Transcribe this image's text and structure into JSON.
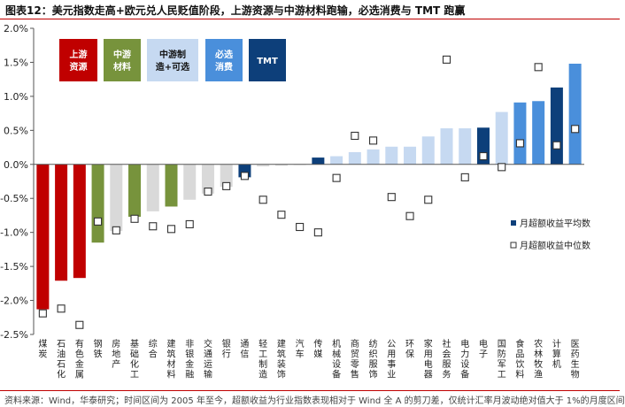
{
  "header": {
    "title": "图表12：美元指数走高+欧元兑人民贬值阶段，上游资源与中游材料跑输，必选消费与 TMT 跑赢"
  },
  "footer": {
    "source": "资料来源：Wind，华泰研究；时间区间为 2005 年至今，超额收益为行业指数表现相对于 Wind 全 A 的剪刀差，仅统计汇率月波动绝对值大于 1%的月度区间"
  },
  "colors": {
    "upstream": "#c00000",
    "midstream": "#77933c",
    "neutral": "#d9d9d9",
    "financial_cyclical": "#1f5fa8",
    "consumer_light": "#c6d9f1",
    "staples": "#4a8fdb",
    "tmt": "#0d3f7a",
    "marker_stroke": "#333333"
  },
  "chart_data": {
    "type": "bar",
    "ylim": [
      -2.5,
      2.0
    ],
    "yticks": [
      "-2.5%",
      "-2.0%",
      "-1.5%",
      "-1.0%",
      "-0.5%",
      "0.0%",
      "0.5%",
      "1.0%",
      "1.5%",
      "2.0%"
    ],
    "ytick_values": [
      -2.5,
      -2.0,
      -1.5,
      -1.0,
      -0.5,
      0.0,
      0.5,
      1.0,
      1.5,
      2.0
    ],
    "categories": [
      "煤炭",
      "石油石化",
      "有色金属",
      "钢铁",
      "房地产",
      "基础化工",
      "综合",
      "建筑材料",
      "非银金融",
      "交通运输",
      "银行",
      "通信",
      "轻工制造",
      "建筑装饰",
      "汽车",
      "传媒",
      "机械设备",
      "商贸零售",
      "纺织服饰",
      "公用事业",
      "环保",
      "家用电器",
      "社会服务",
      "电力设备",
      "电子",
      "国防军工",
      "食品饮料",
      "农林牧渔",
      "计算机",
      "医药生物"
    ],
    "category_groups": [
      "upstream",
      "upstream",
      "upstream",
      "midstream",
      "neutral",
      "midstream",
      "neutral",
      "midstream",
      "neutral",
      "neutral",
      "neutral",
      "tmt",
      "neutral",
      "neutral",
      "neutral",
      "tmt",
      "consumer_light",
      "consumer_light",
      "consumer_light",
      "consumer_light",
      "consumer_light",
      "consumer_light",
      "consumer_light",
      "consumer_light",
      "tmt",
      "consumer_light",
      "staples",
      "staples",
      "tmt",
      "staples"
    ],
    "series": [
      {
        "name": "月超额收益平均数",
        "kind": "bar",
        "values": [
          -2.13,
          -1.71,
          -1.67,
          -1.15,
          -0.98,
          -0.77,
          -0.69,
          -0.62,
          -0.52,
          -0.43,
          -0.33,
          -0.19,
          -0.03,
          -0.02,
          -0.01,
          0.1,
          0.12,
          0.18,
          0.22,
          0.26,
          0.26,
          0.41,
          0.53,
          0.53,
          0.54,
          0.77,
          0.91,
          0.93,
          1.13,
          1.48
        ]
      },
      {
        "name": "月超额收益中位数",
        "kind": "marker",
        "values": [
          -2.19,
          -2.12,
          -2.36,
          -0.84,
          -0.97,
          -0.8,
          -0.91,
          -0.95,
          -0.88,
          -0.4,
          -0.32,
          -0.17,
          -0.52,
          -0.74,
          -0.92,
          -1.0,
          -0.2,
          0.42,
          0.35,
          -0.48,
          -0.76,
          -0.52,
          1.54,
          -0.19,
          0.12,
          -0.04,
          0.31,
          1.43,
          0.28,
          0.52
        ]
      }
    ],
    "group_boxes": [
      {
        "label_lines": [
          "上游",
          "资源"
        ],
        "group": "upstream"
      },
      {
        "label_lines": [
          "中游",
          "材料"
        ],
        "group": "midstream"
      },
      {
        "label_lines": [
          "中游制",
          "造+可选"
        ],
        "group": "consumer_light"
      },
      {
        "label_lines": [
          "必选",
          "消费"
        ],
        "group": "staples"
      },
      {
        "label_lines": [
          "TMT"
        ],
        "group": "tmt"
      }
    ],
    "legend_position": "right",
    "grid": false
  }
}
